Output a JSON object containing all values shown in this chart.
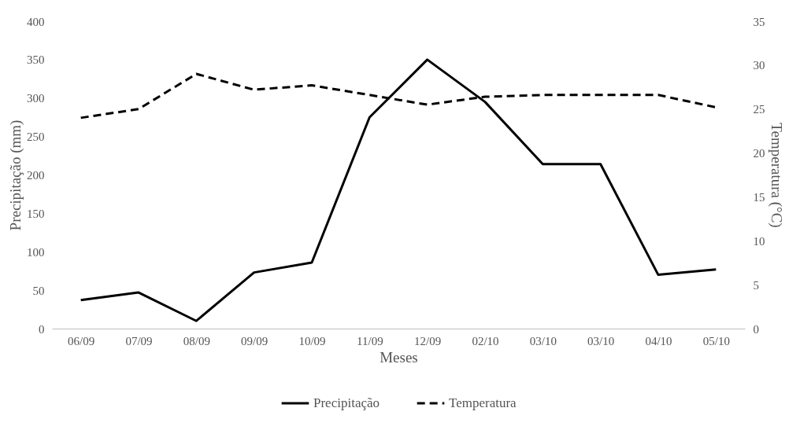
{
  "chart_data": {
    "type": "line",
    "xlabel": "Meses",
    "ylabel": "Precipitação (mm)",
    "y2label": "Temperatura (°C)",
    "categories": [
      "06/09",
      "07/09",
      "08/09",
      "09/09",
      "10/09",
      "11/09",
      "12/09",
      "02/10",
      "03/10",
      "03/10",
      "04/10",
      "05/10"
    ],
    "series": [
      {
        "name": "Precipitação",
        "color": "#000000",
        "line_style": "solid",
        "values": [
          37,
          47,
          10,
          73,
          86,
          275,
          350,
          295,
          214,
          214,
          70,
          77
        ]
      },
      {
        "name": "Temperatura",
        "color": "#000000",
        "line_style": "dashed",
        "axis": "y2",
        "values": [
          24,
          25,
          29,
          27.2,
          27.7,
          26.6,
          25.5,
          26.4,
          26.6,
          26.6,
          26.6,
          25.2
        ]
      }
    ],
    "ylim": [
      0,
      400
    ],
    "yticks": [
      0,
      50,
      100,
      150,
      200,
      250,
      300,
      350,
      400
    ],
    "y2lim": [
      0,
      35
    ],
    "y2ticks": [
      0,
      5,
      10,
      15,
      20,
      25,
      30,
      35
    ],
    "grid": false,
    "legend": "bottom",
    "marker": "none"
  }
}
